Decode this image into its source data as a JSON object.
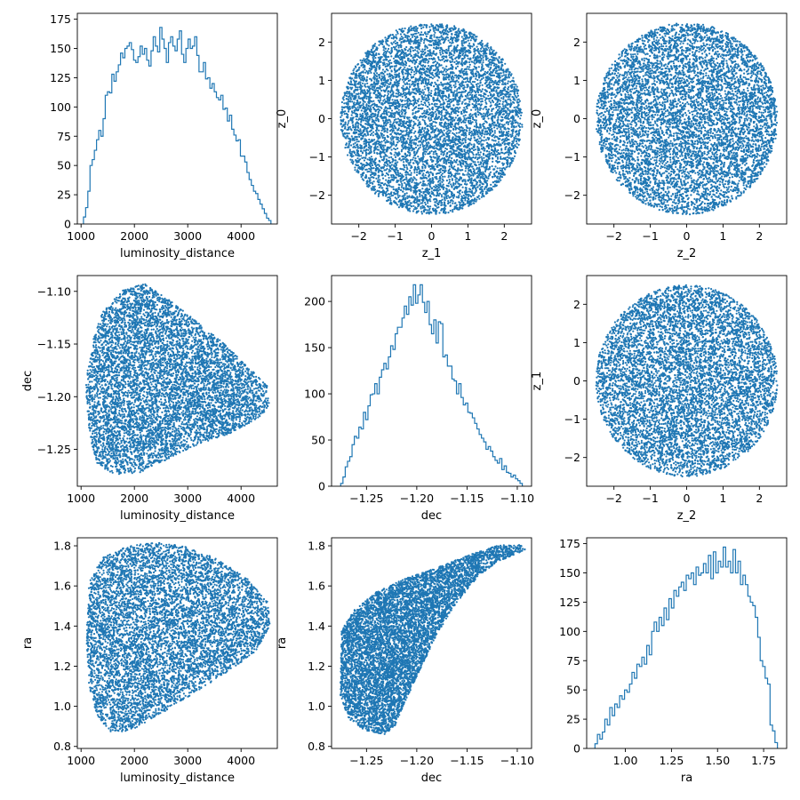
{
  "figure": {
    "background": "#ffffff",
    "series_color": "#1f77b4"
  },
  "chart_data": [
    {
      "id": "p00",
      "type": "histogram",
      "step": true,
      "xlabel": "luminosity_distance",
      "ylabel": "",
      "xlim": [
        930,
        4680
      ],
      "ylim": [
        0,
        180
      ],
      "xticks": [
        1000,
        2000,
        3000,
        4000
      ],
      "xtick_labels": [
        "1000",
        "2000",
        "3000",
        "4000"
      ],
      "yticks": [
        0,
        25,
        50,
        75,
        100,
        125,
        150,
        175
      ],
      "ytick_labels": [
        "0",
        "25",
        "50",
        "75",
        "100",
        "125",
        "150",
        "175"
      ],
      "bins": {
        "start": 1045,
        "end": 4560
      },
      "counts": [
        6,
        14,
        28,
        50,
        55,
        63,
        72,
        80,
        75,
        90,
        110,
        113,
        112,
        128,
        122,
        130,
        136,
        146,
        142,
        150,
        152,
        155,
        149,
        140,
        138,
        143,
        152,
        145,
        150,
        140,
        135,
        148,
        160,
        152,
        147,
        168,
        158,
        150,
        138,
        155,
        160,
        152,
        148,
        158,
        165,
        145,
        138,
        150,
        158,
        150,
        152,
        160,
        144,
        130,
        130,
        138,
        124,
        125,
        116,
        120,
        113,
        108,
        106,
        110,
        98,
        99,
        88,
        93,
        81,
        76,
        71,
        72,
        58,
        58,
        53,
        44,
        38,
        33,
        28,
        26,
        21,
        17,
        13,
        9,
        5,
        3
      ]
    },
    {
      "id": "p01",
      "type": "scatter",
      "xlabel": "z_1",
      "ylabel": "z_0",
      "xlim": [
        -2.75,
        2.75
      ],
      "ylim": [
        -2.75,
        2.75
      ],
      "xticks": [
        -2,
        -1,
        0,
        1,
        2
      ],
      "xtick_labels": [
        "−2",
        "−1",
        "0",
        "1",
        "2"
      ],
      "yticks": [
        -2,
        -1,
        0,
        1,
        2
      ],
      "ytick_labels": [
        "−2",
        "−1",
        "0",
        "1",
        "2"
      ],
      "point_cloud": {
        "shape": "disk",
        "center": [
          0,
          0
        ],
        "radius": 2.5,
        "n_points": 7000,
        "seed": 11
      }
    },
    {
      "id": "p02",
      "type": "scatter",
      "xlabel": "z_2",
      "ylabel": "z_0",
      "xlim": [
        -2.75,
        2.75
      ],
      "ylim": [
        -2.75,
        2.75
      ],
      "xticks": [
        -2,
        -1,
        0,
        1,
        2
      ],
      "xtick_labels": [
        "−2",
        "−1",
        "0",
        "1",
        "2"
      ],
      "yticks": [
        -2,
        -1,
        0,
        1,
        2
      ],
      "ytick_labels": [
        "−2",
        "−1",
        "0",
        "1",
        "2"
      ],
      "point_cloud": {
        "shape": "disk",
        "center": [
          0,
          0
        ],
        "radius": 2.5,
        "n_points": 7000,
        "seed": 23
      }
    },
    {
      "id": "p10",
      "type": "scatter",
      "xlabel": "luminosity_distance",
      "ylabel": "dec",
      "xlim": [
        930,
        4680
      ],
      "ylim": [
        -1.285,
        -1.085
      ],
      "xticks": [
        1000,
        2000,
        3000,
        4000
      ],
      "xtick_labels": [
        "1000",
        "2000",
        "3000",
        "4000"
      ],
      "yticks": [
        -1.25,
        -1.2,
        -1.15,
        -1.1
      ],
      "ytick_labels": [
        "−1.25",
        "−1.20",
        "−1.15",
        "−1.10"
      ],
      "point_cloud": {
        "shape": "polygon",
        "n_points": 7000,
        "seed": 37,
        "vertices": [
          [
            1080,
            -1.19
          ],
          [
            1150,
            -1.235
          ],
          [
            1300,
            -1.263
          ],
          [
            1600,
            -1.274
          ],
          [
            2100,
            -1.272
          ],
          [
            2600,
            -1.26
          ],
          [
            3200,
            -1.245
          ],
          [
            3800,
            -1.235
          ],
          [
            4400,
            -1.218
          ],
          [
            4550,
            -1.205
          ],
          [
            4500,
            -1.19
          ],
          [
            4100,
            -1.17
          ],
          [
            3600,
            -1.146
          ],
          [
            3100,
            -1.126
          ],
          [
            2600,
            -1.106
          ],
          [
            2200,
            -1.093
          ],
          [
            1800,
            -1.098
          ],
          [
            1400,
            -1.12
          ],
          [
            1200,
            -1.15
          ]
        ]
      }
    },
    {
      "id": "p11",
      "type": "histogram",
      "step": true,
      "xlabel": "dec",
      "ylabel": "",
      "xlim": [
        -1.2848,
        -1.0858
      ],
      "ylim": [
        0,
        228
      ],
      "xticks": [
        -1.25,
        -1.2,
        -1.15,
        -1.1
      ],
      "xtick_labels": [
        "−1.25",
        "−1.20",
        "−1.15",
        "−1.10"
      ],
      "yticks": [
        0,
        50,
        100,
        150,
        200
      ],
      "ytick_labels": [
        "0",
        "50",
        "100",
        "150",
        "200"
      ],
      "bins": {
        "start": -1.2757,
        "end": -1.095
      },
      "counts": [
        3,
        10,
        21,
        27,
        32,
        45,
        54,
        52,
        64,
        62,
        80,
        72,
        87,
        99,
        100,
        111,
        100,
        118,
        126,
        133,
        127,
        140,
        152,
        148,
        165,
        172,
        172,
        182,
        195,
        186,
        205,
        196,
        218,
        198,
        207,
        218,
        199,
        188,
        200,
        175,
        165,
        180,
        155,
        178,
        176,
        140,
        142,
        130,
        130,
        116,
        114,
        100,
        111,
        96,
        88,
        90,
        80,
        79,
        74,
        68,
        62,
        56,
        52,
        48,
        40,
        43,
        38,
        32,
        28,
        25,
        30,
        18,
        22,
        15,
        14,
        10,
        12,
        8,
        6,
        3
      ]
    },
    {
      "id": "p12",
      "type": "scatter",
      "xlabel": "z_2",
      "ylabel": "z_1",
      "xlim": [
        -2.75,
        2.75
      ],
      "ylim": [
        -2.75,
        2.75
      ],
      "xticks": [
        -2,
        -1,
        0,
        1,
        2
      ],
      "xtick_labels": [
        "−2",
        "−1",
        "0",
        "1",
        "2"
      ],
      "yticks": [
        -2,
        -1,
        0,
        1,
        2
      ],
      "ytick_labels": [
        "−2",
        "−1",
        "0",
        "1",
        "2"
      ],
      "point_cloud": {
        "shape": "disk",
        "center": [
          0,
          0
        ],
        "radius": 2.5,
        "n_points": 7000,
        "seed": 41
      }
    },
    {
      "id": "p20",
      "type": "scatter",
      "xlabel": "luminosity_distance",
      "ylabel": "ra",
      "xlim": [
        930,
        4680
      ],
      "ylim": [
        0.79,
        1.84
      ],
      "xticks": [
        1000,
        2000,
        3000,
        4000
      ],
      "xtick_labels": [
        "1000",
        "2000",
        "3000",
        "4000"
      ],
      "yticks": [
        0.8,
        1.0,
        1.2,
        1.4,
        1.6,
        1.8
      ],
      "ytick_labels": [
        "0.8",
        "1.0",
        "1.2",
        "1.4",
        "1.6",
        "1.8"
      ],
      "point_cloud": {
        "shape": "polygon",
        "n_points": 7000,
        "seed": 53,
        "vertices": [
          [
            1100,
            1.35
          ],
          [
            1150,
            1.1
          ],
          [
            1300,
            0.95
          ],
          [
            1600,
            0.86
          ],
          [
            2000,
            0.89
          ],
          [
            2600,
            0.98
          ],
          [
            3200,
            1.08
          ],
          [
            3800,
            1.18
          ],
          [
            4300,
            1.28
          ],
          [
            4550,
            1.4
          ],
          [
            4500,
            1.52
          ],
          [
            4100,
            1.64
          ],
          [
            3500,
            1.74
          ],
          [
            2900,
            1.8
          ],
          [
            2300,
            1.82
          ],
          [
            1800,
            1.79
          ],
          [
            1400,
            1.74
          ],
          [
            1150,
            1.62
          ]
        ]
      }
    },
    {
      "id": "p21",
      "type": "scatter",
      "xlabel": "dec",
      "ylabel": "ra",
      "xlim": [
        -1.2848,
        -1.0858
      ],
      "ylim": [
        0.79,
        1.84
      ],
      "xticks": [
        -1.25,
        -1.2,
        -1.15,
        -1.1
      ],
      "xtick_labels": [
        "−1.25",
        "−1.20",
        "−1.15",
        "−1.10"
      ],
      "yticks": [
        0.8,
        1.0,
        1.2,
        1.4,
        1.6,
        1.8
      ],
      "ytick_labels": [
        "0.8",
        "1.0",
        "1.2",
        "1.4",
        "1.6",
        "1.8"
      ],
      "point_cloud": {
        "shape": "polygon",
        "n_points": 7000,
        "seed": 67,
        "vertices": [
          [
            -1.276,
            1.05
          ],
          [
            -1.275,
            1.38
          ],
          [
            -1.262,
            1.48
          ],
          [
            -1.24,
            1.57
          ],
          [
            -1.21,
            1.64
          ],
          [
            -1.175,
            1.7
          ],
          [
            -1.145,
            1.76
          ],
          [
            -1.12,
            1.8
          ],
          [
            -1.098,
            1.81
          ],
          [
            -1.092,
            1.78
          ],
          [
            -1.1,
            1.76
          ],
          [
            -1.12,
            1.72
          ],
          [
            -1.14,
            1.64
          ],
          [
            -1.16,
            1.52
          ],
          [
            -1.18,
            1.36
          ],
          [
            -1.198,
            1.17
          ],
          [
            -1.212,
            1.02
          ],
          [
            -1.222,
            0.9
          ],
          [
            -1.232,
            0.86
          ],
          [
            -1.252,
            0.88
          ],
          [
            -1.268,
            0.94
          ]
        ]
      }
    },
    {
      "id": "p22",
      "type": "histogram",
      "step": true,
      "xlabel": "ra",
      "ylabel": "",
      "xlim": [
        0.79,
        1.875
      ],
      "ylim": [
        0,
        180
      ],
      "xticks": [
        1.0,
        1.25,
        1.5,
        1.75
      ],
      "xtick_labels": [
        "1.00",
        "1.25",
        "1.50",
        "1.75"
      ],
      "yticks": [
        0,
        25,
        50,
        75,
        100,
        125,
        150,
        175
      ],
      "ytick_labels": [
        "0",
        "25",
        "50",
        "75",
        "100",
        "125",
        "150",
        "175"
      ],
      "bins": {
        "start": 0.835,
        "end": 1.825
      },
      "counts": [
        4,
        12,
        8,
        14,
        25,
        20,
        35,
        28,
        38,
        35,
        45,
        42,
        50,
        48,
        55,
        65,
        60,
        72,
        70,
        78,
        72,
        88,
        80,
        100,
        108,
        100,
        112,
        105,
        120,
        110,
        128,
        120,
        135,
        130,
        138,
        142,
        135,
        148,
        145,
        150,
        140,
        155,
        148,
        150,
        158,
        150,
        165,
        145,
        168,
        150,
        160,
        155,
        172,
        155,
        160,
        150,
        170,
        150,
        160,
        140,
        148,
        140,
        130,
        125,
        122,
        112,
        95,
        75,
        70,
        60,
        55,
        20,
        15,
        5
      ]
    }
  ]
}
